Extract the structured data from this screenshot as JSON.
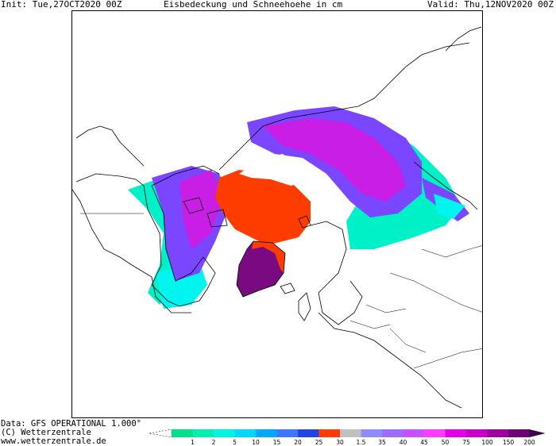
{
  "header": {
    "init": "Init: Tue,27OCT2020 00Z",
    "title": "Eisbedeckung und Schneehoehe in cm",
    "valid": "Valid: Thu,12NOV2020 00Z"
  },
  "footer": {
    "line1": "Data: GFS OPERATIONAL 1.000°",
    "line2": "(C) Wetterzentrale",
    "line3": "www.wetterzentrale.de"
  },
  "legend": {
    "entries": [
      {
        "label": "1",
        "color": "#00e08a"
      },
      {
        "label": "2",
        "color": "#00f0b0"
      },
      {
        "label": "5",
        "color": "#00f5e0"
      },
      {
        "label": "10",
        "color": "#00d8ff"
      },
      {
        "label": "15",
        "color": "#00a8ff"
      },
      {
        "label": "20",
        "color": "#3c78ff"
      },
      {
        "label": "25",
        "color": "#1e46e6"
      },
      {
        "label": "30",
        "color": "#ff3c00"
      },
      {
        "label": "1.5",
        "color": "#c0c0c0"
      },
      {
        "label": "35",
        "color": "#8c8cff"
      },
      {
        "label": "40",
        "color": "#a06cff"
      },
      {
        "label": "45",
        "color": "#c850ff"
      },
      {
        "label": "50",
        "color": "#ff3cff"
      },
      {
        "label": "75",
        "color": "#e600e6"
      },
      {
        "label": "100",
        "color": "#c800c8"
      },
      {
        "label": "150",
        "color": "#a000a0"
      },
      {
        "label": "200",
        "color": "#6e0078"
      }
    ]
  },
  "map": {
    "colors": {
      "sea_ice": "#ff3c00",
      "greenland": "#7a0a82",
      "snow_deep": "#c81ee6",
      "snow_mid": "#7a46ff",
      "snow_light": "#00f0c8",
      "snow_cyan": "#00f5f0"
    }
  }
}
